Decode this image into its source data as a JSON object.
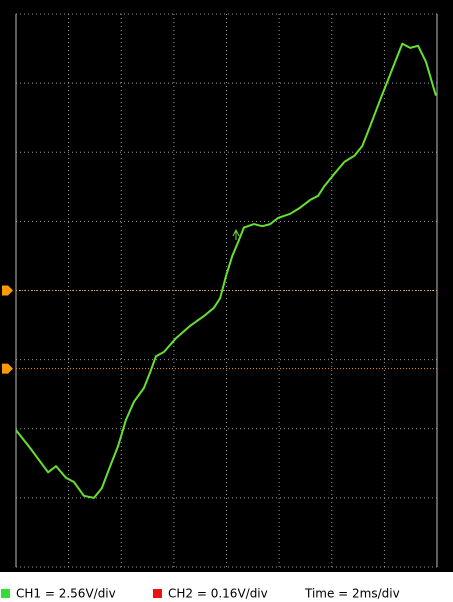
{
  "chart_data": {
    "type": "line",
    "xlim": [
      0,
      8
    ],
    "ylim": [
      0,
      8
    ],
    "xticks": [
      0,
      1,
      2,
      3,
      4,
      5,
      6,
      7,
      8
    ],
    "yticks": [
      0,
      1,
      2,
      3,
      4,
      5,
      6,
      7,
      8
    ],
    "grid": true,
    "x": [
      0,
      0.27,
      0.61,
      0.76,
      0.95,
      1.1,
      1.29,
      1.48,
      1.63,
      1.79,
      1.94,
      2.09,
      2.24,
      2.43,
      2.55,
      2.66,
      2.81,
      3.04,
      3.31,
      3.57,
      3.76,
      3.88,
      3.99,
      4.11,
      4.22,
      4.33,
      4.52,
      4.68,
      4.83,
      4.98,
      5.21,
      5.4,
      5.59,
      5.74,
      5.86,
      6.05,
      6.24,
      6.43,
      6.58,
      6.73,
      6.92,
      7.07,
      7.22,
      7.34,
      7.49,
      7.64,
      7.79,
      7.98
    ],
    "series": [
      {
        "color": "#66e030",
        "values": [
          1.98,
          1.72,
          1.37,
          1.46,
          1.29,
          1.23,
          1.03,
          1.0,
          1.14,
          1.46,
          1.75,
          2.13,
          2.39,
          2.59,
          2.82,
          3.05,
          3.11,
          3.31,
          3.49,
          3.63,
          3.75,
          3.89,
          4.21,
          4.5,
          4.7,
          4.91,
          4.96,
          4.93,
          4.96,
          5.05,
          5.11,
          5.2,
          5.31,
          5.37,
          5.51,
          5.69,
          5.86,
          5.95,
          6.09,
          6.38,
          6.76,
          7.05,
          7.34,
          7.57,
          7.51,
          7.54,
          7.31,
          6.82
        ]
      }
    ],
    "reference_levels": [
      {
        "value": 4.0,
        "color": "#ff9900"
      },
      {
        "value": 2.87,
        "color": "#ff9900"
      }
    ],
    "channels": [
      {
        "label": "CH1 = 2.56V/div",
        "color": "#33dd33"
      },
      {
        "label": "CH2 = 0.16V/div",
        "color": "#ee1111"
      }
    ],
    "time_label": "Time = 2ms/div"
  }
}
